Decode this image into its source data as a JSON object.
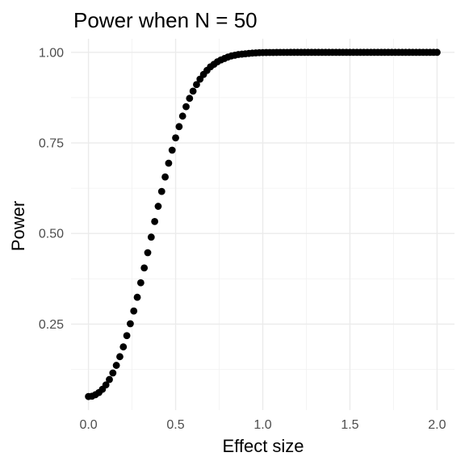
{
  "chart_data": {
    "type": "scatter",
    "title": "Power when N = 50",
    "xlabel": "Effect size",
    "ylabel": "Power",
    "xlim": [
      -0.1,
      2.1
    ],
    "ylim": [
      0.0125,
      1.0375
    ],
    "x_ticks": [
      0.0,
      0.5,
      1.0,
      1.5,
      2.0
    ],
    "x_tick_labels": [
      "0.0",
      "0.5",
      "1.0",
      "1.5",
      "2.0"
    ],
    "y_ticks": [
      0.25,
      0.5,
      0.75,
      1.0
    ],
    "y_tick_labels": [
      "0.25",
      "0.50",
      "0.75",
      "1.00"
    ],
    "grid": true,
    "legend": "none",
    "point_color": "#000000",
    "series": [
      {
        "x": [
          0.0,
          0.02,
          0.04,
          0.06,
          0.08,
          0.1,
          0.12,
          0.14,
          0.16,
          0.18,
          0.2,
          0.22,
          0.24,
          0.26,
          0.28,
          0.3,
          0.32,
          0.34,
          0.36,
          0.38,
          0.4,
          0.42,
          0.44,
          0.46,
          0.48,
          0.5,
          0.52,
          0.54,
          0.56,
          0.58,
          0.6,
          0.62,
          0.64,
          0.66,
          0.68,
          0.7,
          0.72,
          0.74,
          0.76,
          0.78,
          0.8,
          0.82,
          0.84,
          0.86,
          0.88,
          0.9,
          0.92,
          0.94,
          0.96,
          0.98,
          1.0,
          1.02,
          1.04,
          1.06,
          1.08,
          1.1,
          1.12,
          1.14,
          1.16,
          1.18,
          1.2,
          1.22,
          1.24,
          1.26,
          1.28,
          1.3,
          1.32,
          1.34,
          1.36,
          1.38,
          1.4,
          1.42,
          1.44,
          1.46,
          1.48,
          1.5,
          1.52,
          1.54,
          1.56,
          1.58,
          1.6,
          1.62,
          1.64,
          1.66,
          1.68,
          1.7,
          1.72,
          1.74,
          1.76,
          1.78,
          1.8,
          1.82,
          1.84,
          1.86,
          1.88,
          1.9,
          1.92,
          1.94,
          1.96,
          1.98,
          2.0
        ],
        "y": [
          0.05,
          0.051,
          0.055,
          0.061,
          0.07,
          0.082,
          0.097,
          0.115,
          0.136,
          0.16,
          0.187,
          0.218,
          0.251,
          0.286,
          0.324,
          0.364,
          0.405,
          0.447,
          0.49,
          0.533,
          0.575,
          0.616,
          0.656,
          0.694,
          0.73,
          0.764,
          0.795,
          0.824,
          0.85,
          0.873,
          0.893,
          0.911,
          0.926,
          0.939,
          0.95,
          0.96,
          0.967,
          0.974,
          0.979,
          0.983,
          0.987,
          0.99,
          0.992,
          0.994,
          0.995,
          0.996,
          0.997,
          0.998,
          0.9985,
          0.999,
          0.9993,
          0.9995,
          0.9996,
          0.9997,
          0.9998,
          0.9999,
          0.9999,
          0.9999,
          1.0,
          1.0,
          1.0,
          1.0,
          1.0,
          1.0,
          1.0,
          1.0,
          1.0,
          1.0,
          1.0,
          1.0,
          1.0,
          1.0,
          1.0,
          1.0,
          1.0,
          1.0,
          1.0,
          1.0,
          1.0,
          1.0,
          1.0,
          1.0,
          1.0,
          1.0,
          1.0,
          1.0,
          1.0,
          1.0,
          1.0,
          1.0,
          1.0,
          1.0,
          1.0,
          1.0,
          1.0,
          1.0,
          1.0,
          1.0,
          1.0,
          1.0,
          1.0
        ]
      }
    ]
  }
}
